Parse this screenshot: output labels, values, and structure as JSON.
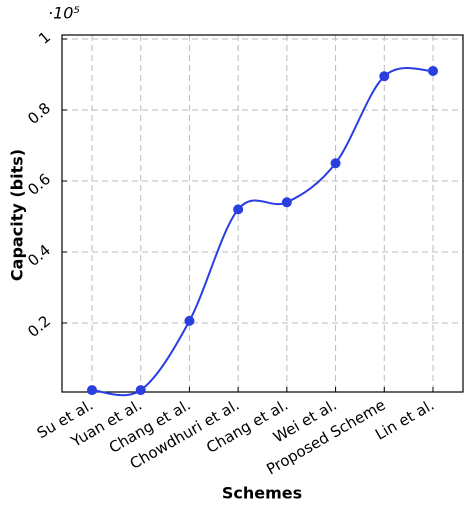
{
  "chart_data": {
    "type": "line",
    "x_label": "Schemes",
    "y_label": "Capacity (bits)",
    "y_scale_label": "·10⁵",
    "categories": [
      "Su et al.",
      "Yuan et al.",
      "Chang et al.",
      "Chowdhuri et al.",
      "Chang et al.",
      "Wei et al.",
      "Proposed Scheme",
      "Lin et al."
    ],
    "series": [
      {
        "name": "Capacity",
        "color": "#2b3fe0",
        "values": [
          0.011,
          0.011,
          0.206,
          0.52,
          0.54,
          0.65,
          0.895,
          0.91
        ]
      }
    ],
    "ylim": [
      0,
      1
    ],
    "yticks": [
      0.2,
      0.4,
      0.6,
      0.8,
      1
    ],
    "grid": true,
    "smooth": true
  }
}
